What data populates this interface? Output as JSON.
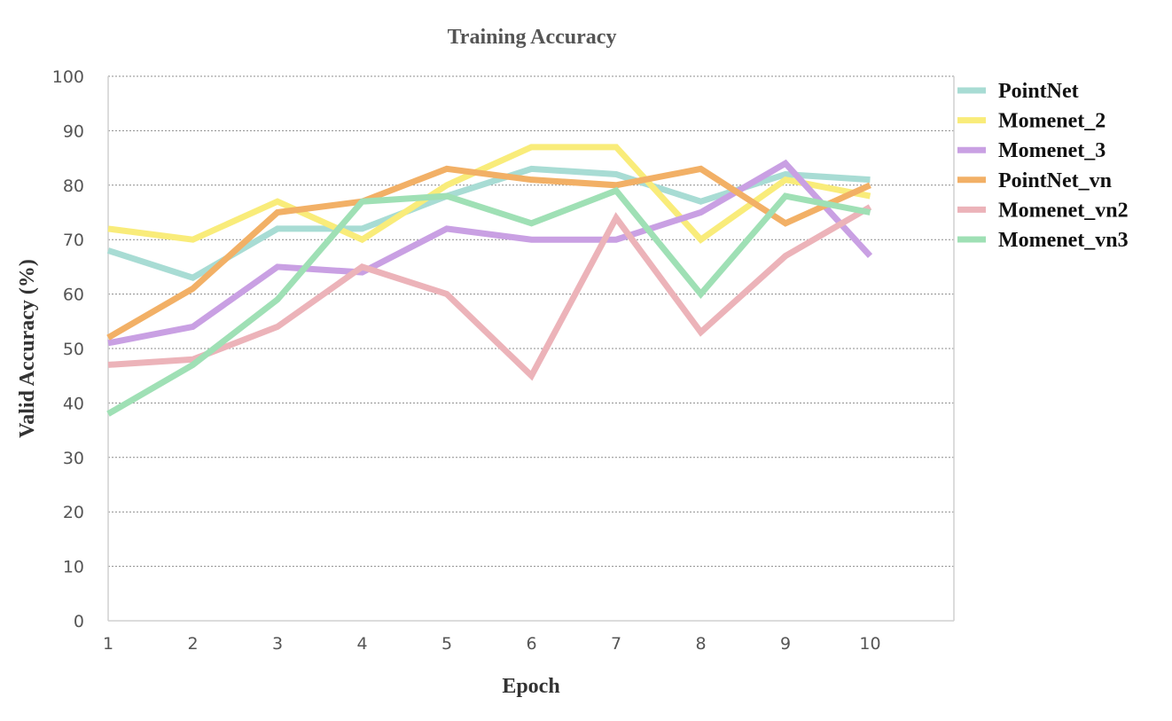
{
  "chart_data": {
    "type": "line",
    "title": "Training Accuracy",
    "xlabel": "Epoch",
    "ylabel": "Valid Accuracy (%)",
    "x": [
      1,
      2,
      3,
      4,
      5,
      6,
      7,
      8,
      9,
      10
    ],
    "x_tick_labels": [
      "1",
      "2",
      "3",
      "4",
      "5",
      "6",
      "7",
      "8",
      "9",
      "10"
    ],
    "y_ticks": [
      0,
      10,
      20,
      30,
      40,
      50,
      60,
      70,
      80,
      90,
      100
    ],
    "y_tick_labels": [
      "0",
      "10",
      "20",
      "30",
      "40",
      "50",
      "60",
      "70",
      "80",
      "90",
      "100"
    ],
    "ylim": [
      0,
      100
    ],
    "grid": true,
    "legend_position": "right",
    "series": [
      {
        "name": "PointNet",
        "color": "#a8dcd4",
        "values": [
          68,
          63,
          72,
          72,
          78,
          83,
          82,
          77,
          82,
          81
        ]
      },
      {
        "name": "Momenet_2",
        "color": "#f9ec7a",
        "values": [
          72,
          70,
          77,
          70,
          80,
          87,
          87,
          70,
          81,
          78
        ]
      },
      {
        "name": "Momenet_3",
        "color": "#c9a0e3",
        "values": [
          51,
          54,
          65,
          64,
          72,
          70,
          70,
          75,
          84,
          67
        ]
      },
      {
        "name": "PointNet_vn",
        "color": "#f2b066",
        "values": [
          52,
          61,
          75,
          77,
          83,
          81,
          80,
          83,
          73,
          80
        ]
      },
      {
        "name": "Momenet_vn2",
        "color": "#ecb3b9",
        "values": [
          47,
          48,
          54,
          65,
          60,
          45,
          74,
          53,
          67,
          76
        ]
      },
      {
        "name": "Momenet_vn3",
        "color": "#9fe0b5",
        "values": [
          38,
          47,
          59,
          77,
          78,
          73,
          79,
          60,
          78,
          75
        ]
      }
    ]
  }
}
